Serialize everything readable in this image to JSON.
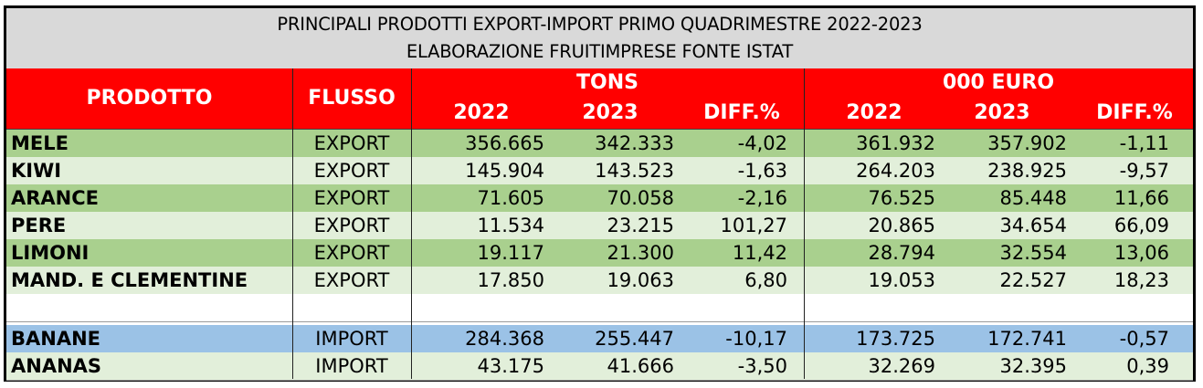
{
  "title": {
    "line1": "PRINCIPALI PRODOTTI EXPORT-IMPORT PRIMO QUADRIMESTRE 2022-2023",
    "line2": "ELABORAZIONE FRUITIMPRESE FONTE ISTAT"
  },
  "header": {
    "prodotto": "PRODOTTO",
    "flusso": "FLUSSO",
    "tons": "TONS",
    "euro": "000 EURO",
    "tons_2022": "2022",
    "tons_2023": "2023",
    "tons_diff": "DIFF.%",
    "euro_2022": "2022",
    "euro_2023": "2023",
    "euro_diff": "DIFF.%"
  },
  "colors": {
    "header_red": "#ff0000",
    "row_green_dark": "#a9d08e",
    "row_green_light": "#e2efda",
    "row_blue": "#9bc2e6",
    "title_grey": "#d9d9d9"
  },
  "rows": [
    {
      "prodotto": "MELE",
      "flusso": "EXPORT",
      "t2022": "356.665",
      "t2023": "342.333",
      "tdiff": "-4,02",
      "e2022": "361.932",
      "e2023": "357.902",
      "ediff": "-1,11"
    },
    {
      "prodotto": "KIWI",
      "flusso": "EXPORT",
      "t2022": "145.904",
      "t2023": "143.523",
      "tdiff": "-1,63",
      "e2022": "264.203",
      "e2023": "238.925",
      "ediff": "-9,57"
    },
    {
      "prodotto": "ARANCE",
      "flusso": "EXPORT",
      "t2022": "71.605",
      "t2023": "70.058",
      "tdiff": "-2,16",
      "e2022": "76.525",
      "e2023": "85.448",
      "ediff": "11,66"
    },
    {
      "prodotto": "PERE",
      "flusso": "EXPORT",
      "t2022": "11.534",
      "t2023": "23.215",
      "tdiff": "101,27",
      "e2022": "20.865",
      "e2023": "34.654",
      "ediff": "66,09"
    },
    {
      "prodotto": "LIMONI",
      "flusso": "EXPORT",
      "t2022": "19.117",
      "t2023": "21.300",
      "tdiff": "11,42",
      "e2022": "28.794",
      "e2023": "32.554",
      "ediff": "13,06"
    },
    {
      "prodotto": "MAND. E CLEMENTINE",
      "flusso": "EXPORT",
      "t2022": "17.850",
      "t2023": "19.063",
      "tdiff": "6,80",
      "e2022": "19.053",
      "e2023": "22.527",
      "ediff": "18,23"
    },
    {
      "prodotto": "",
      "flusso": "",
      "t2022": "",
      "t2023": "",
      "tdiff": "",
      "e2022": "",
      "e2023": "",
      "ediff": ""
    },
    {
      "prodotto": "BANANE",
      "flusso": "IMPORT",
      "t2022": "284.368",
      "t2023": "255.447",
      "tdiff": "-10,17",
      "e2022": "173.725",
      "e2023": "172.741",
      "ediff": "-0,57"
    },
    {
      "prodotto": "ANANAS",
      "flusso": "IMPORT",
      "t2022": "43.175",
      "t2023": "41.666",
      "tdiff": "-3,50",
      "e2022": "32.269",
      "e2023": "32.395",
      "ediff": "0,39"
    }
  ]
}
